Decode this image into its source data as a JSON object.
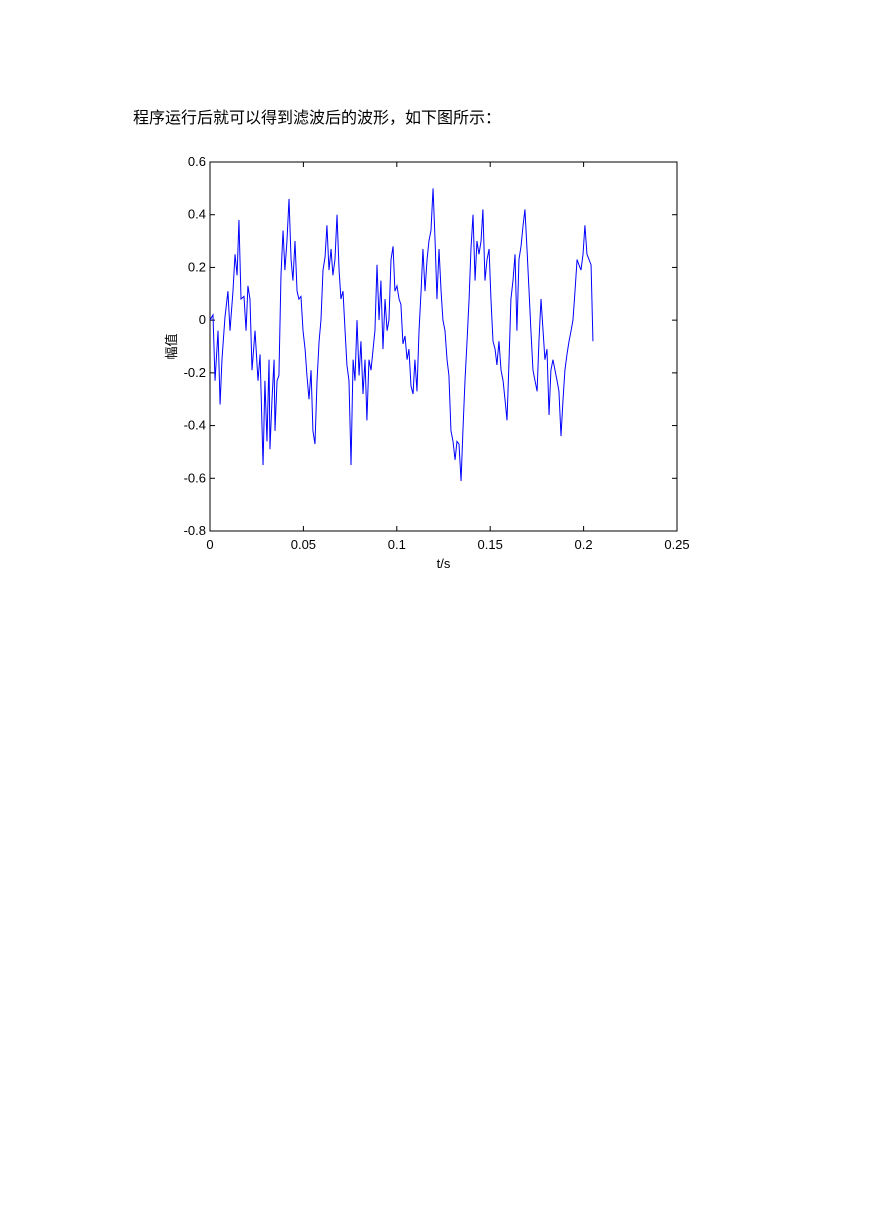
{
  "paragraph": "程序运行后就可以得到滤波后的波形，如下图所示：",
  "chart_data": {
    "type": "line",
    "xlabel": "t/s",
    "ylabel": "幅值",
    "xlim": [
      0,
      0.25
    ],
    "ylim": [
      -0.8,
      0.6
    ],
    "xticks": [
      0,
      0.05,
      0.1,
      0.15,
      0.2,
      0.25
    ],
    "yticks": [
      -0.8,
      -0.6,
      -0.4,
      -0.2,
      0,
      0.2,
      0.4,
      0.6
    ],
    "color": "#0000ff",
    "x": [
      0,
      0.0016,
      0.0027,
      0.0043,
      0.0054,
      0.0064,
      0.008,
      0.0096,
      0.0107,
      0.0123,
      0.0134,
      0.0145,
      0.0155,
      0.0166,
      0.0182,
      0.0193,
      0.0203,
      0.0214,
      0.0225,
      0.0241,
      0.0257,
      0.0268,
      0.0284,
      0.0294,
      0.0305,
      0.0316,
      0.0321,
      0.0332,
      0.0343,
      0.0348,
      0.0359,
      0.0369,
      0.038,
      0.0391,
      0.0401,
      0.0412,
      0.0423,
      0.0434,
      0.0444,
      0.0455,
      0.0466,
      0.0476,
      0.0487,
      0.0498,
      0.0509,
      0.0519,
      0.053,
      0.0541,
      0.0551,
      0.0562,
      0.0573,
      0.0584,
      0.0594,
      0.0605,
      0.0616,
      0.0626,
      0.0637,
      0.0648,
      0.0658,
      0.0669,
      0.068,
      0.0691,
      0.0701,
      0.0712,
      0.0723,
      0.0733,
      0.0744,
      0.0755,
      0.0766,
      0.0776,
      0.0787,
      0.0798,
      0.0808,
      0.0819,
      0.083,
      0.084,
      0.0851,
      0.0862,
      0.0873,
      0.0883,
      0.0894,
      0.0905,
      0.0915,
      0.0926,
      0.0937,
      0.0948,
      0.0958,
      0.0969,
      0.098,
      0.099,
      0.1001,
      0.1012,
      0.1022,
      0.1033,
      0.1044,
      0.1055,
      0.1065,
      0.1076,
      0.1087,
      0.1097,
      0.1108,
      0.1119,
      0.113,
      0.114,
      0.1151,
      0.1162,
      0.1172,
      0.1183,
      0.1194,
      0.1205,
      0.1215,
      0.1226,
      0.1237,
      0.1247,
      0.1258,
      0.1269,
      0.1279,
      0.129,
      0.1301,
      0.1312,
      0.1322,
      0.1333,
      0.1344,
      0.1354,
      0.1365,
      0.1376,
      0.1387,
      0.1397,
      0.1408,
      0.1419,
      0.1429,
      0.144,
      0.1451,
      0.1461,
      0.1472,
      0.1483,
      0.1494,
      0.1504,
      0.1515,
      0.1526,
      0.1536,
      0.1547,
      0.1558,
      0.1569,
      0.1579,
      0.159,
      0.1601,
      0.1611,
      0.1622,
      0.1633,
      0.1643,
      0.1654,
      0.1665,
      0.1676,
      0.1686,
      0.1697,
      0.1708,
      0.1718,
      0.1729,
      0.174,
      0.1751,
      0.1761,
      0.1772,
      0.1783,
      0.1793,
      0.1804,
      0.1815,
      0.1825,
      0.1836,
      0.1847,
      0.1858,
      0.1868,
      0.1879,
      0.189,
      0.19,
      0.1911,
      0.1922,
      0.1933,
      0.1943,
      0.1954,
      0.1965,
      0.1975,
      0.1986,
      0.1997,
      0.2007,
      0.2018,
      0.2029,
      0.204,
      0.205
    ],
    "values": [
      0,
      0.02,
      -0.23,
      -0.04,
      -0.32,
      -0.15,
      0.01,
      0.11,
      -0.04,
      0.11,
      0.25,
      0.17,
      0.38,
      0.08,
      0.09,
      -0.04,
      0.13,
      0.08,
      -0.19,
      -0.04,
      -0.23,
      -0.13,
      -0.55,
      -0.23,
      -0.46,
      -0.15,
      -0.49,
      -0.3,
      -0.15,
      -0.42,
      -0.23,
      -0.21,
      0.17,
      0.34,
      0.19,
      0.3,
      0.46,
      0.23,
      0.15,
      0.3,
      0.11,
      0.08,
      0.09,
      -0.04,
      -0.11,
      -0.21,
      -0.3,
      -0.19,
      -0.42,
      -0.47,
      -0.23,
      -0.08,
      0,
      0.19,
      0.24,
      0.36,
      0.19,
      0.27,
      0.17,
      0.23,
      0.4,
      0.19,
      0.08,
      0.11,
      -0.04,
      -0.17,
      -0.23,
      -0.55,
      -0.15,
      -0.23,
      0,
      -0.21,
      -0.08,
      -0.28,
      -0.15,
      -0.38,
      -0.15,
      -0.19,
      -0.11,
      -0.04,
      0.21,
      0,
      0.15,
      -0.11,
      0.08,
      -0.04,
      0,
      0.23,
      0.28,
      0.11,
      0.13,
      0.08,
      0.06,
      -0.09,
      -0.06,
      -0.15,
      -0.11,
      -0.25,
      -0.28,
      -0.15,
      -0.27,
      -0.04,
      0.11,
      0.27,
      0.11,
      0.23,
      0.3,
      0.34,
      0.5,
      0.3,
      0.08,
      0.27,
      0.11,
      0,
      -0.04,
      -0.15,
      -0.21,
      -0.42,
      -0.46,
      -0.53,
      -0.46,
      -0.47,
      -0.61,
      -0.42,
      -0.23,
      -0.08,
      0.08,
      0.27,
      0.4,
      0.15,
      0.3,
      0.25,
      0.3,
      0.42,
      0.15,
      0.23,
      0.27,
      0.08,
      -0.08,
      -0.11,
      -0.17,
      -0.08,
      -0.19,
      -0.23,
      -0.3,
      -0.38,
      -0.15,
      0.08,
      0.15,
      0.25,
      -0.04,
      0.23,
      0.28,
      0.36,
      0.42,
      0.27,
      0.11,
      -0.04,
      -0.19,
      -0.23,
      -0.27,
      -0.08,
      0.08,
      -0.04,
      -0.15,
      -0.11,
      -0.36,
      -0.19,
      -0.15,
      -0.19,
      -0.23,
      -0.27,
      -0.44,
      -0.3,
      -0.19,
      -0.13,
      -0.08,
      -0.04,
      0,
      0.11,
      0.23,
      0.21,
      0.19,
      0.25,
      0.36,
      0.25,
      0.23,
      0.21,
      -0.08
    ]
  }
}
